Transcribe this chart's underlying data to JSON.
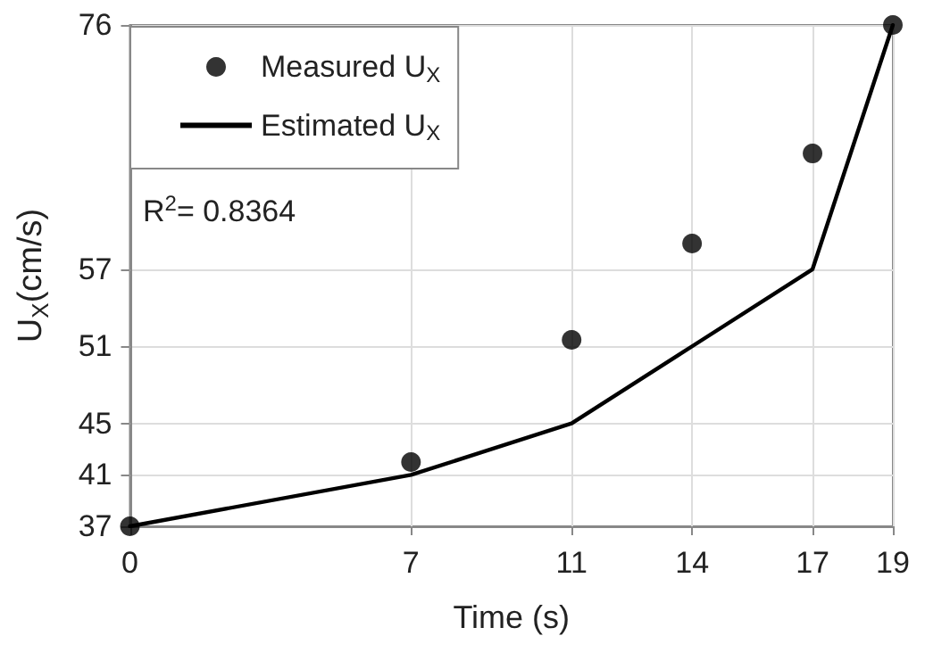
{
  "chart_data": {
    "type": "scatter",
    "xlabel": "Time (s)",
    "ylabel": "U$_{X}$(cm/s)",
    "annotations": [
      "R$^{2}$= 0.8364"
    ],
    "x": [
      0,
      7,
      11,
      14,
      17,
      19
    ],
    "series": [
      {
        "name": "Measured U$_{X}$",
        "color": "#000000",
        "marker": "circle",
        "values": [
          37,
          42,
          51.5,
          59,
          66,
          76
        ]
      },
      {
        "name": "Estimated U$_{X}$",
        "type": "line",
        "color": "#000000",
        "marker": "none",
        "line_style": "solid",
        "values": [
          37,
          41,
          45,
          51,
          57,
          76
        ]
      }
    ],
    "xlim": [
      0,
      19
    ],
    "xticks": [
      0,
      7,
      11,
      14,
      17,
      19
    ],
    "ylim": [
      37,
      76
    ],
    "yticks": [
      37,
      41,
      45,
      51,
      57,
      76
    ],
    "grid": true,
    "legend": "top left"
  }
}
